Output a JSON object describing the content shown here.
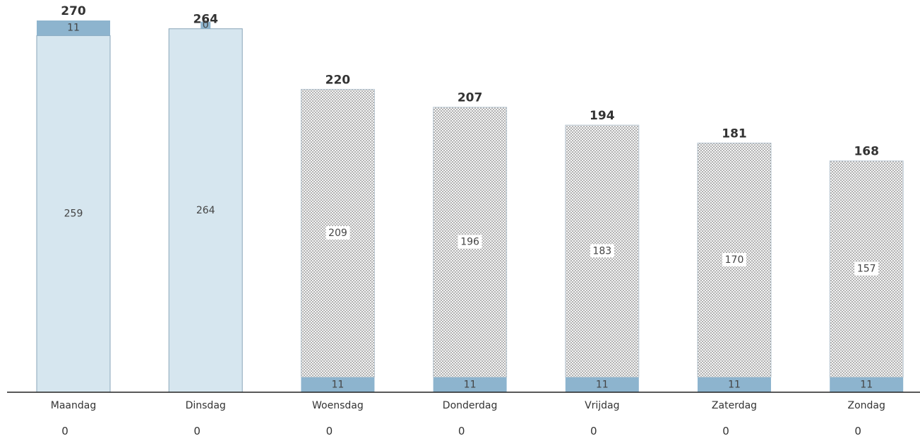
{
  "chart_data": {
    "type": "bar",
    "stacked": true,
    "categories": [
      "Maandag",
      "Dinsdag",
      "Woensdag",
      "Donderdag",
      "Vrijdag",
      "Zaterdag",
      "Zondag"
    ],
    "series": [
      {
        "values": [
          259,
          264,
          209,
          196,
          183,
          170,
          157
        ],
        "color": "#d6e6ef"
      },
      {
        "values": [
          11,
          0,
          11,
          11,
          11,
          11,
          11
        ],
        "color": "#8db4ce"
      }
    ],
    "stack_order_bottom_to_top": [
      [
        0,
        1
      ],
      [
        0,
        1
      ],
      [
        1,
        0
      ],
      [
        1,
        0
      ],
      [
        1,
        0
      ],
      [
        1,
        0
      ],
      [
        1,
        0
      ]
    ],
    "bar_style": [
      "solid",
      "solid",
      "dotted",
      "dotted",
      "dotted",
      "dotted",
      "dotted"
    ],
    "totals": [
      270,
      264,
      220,
      207,
      194,
      181,
      168
    ],
    "bottom_values": [
      0,
      0,
      0,
      0,
      0,
      0,
      0
    ],
    "ylim": [
      0,
      270
    ],
    "grid": false,
    "legend": "none"
  }
}
